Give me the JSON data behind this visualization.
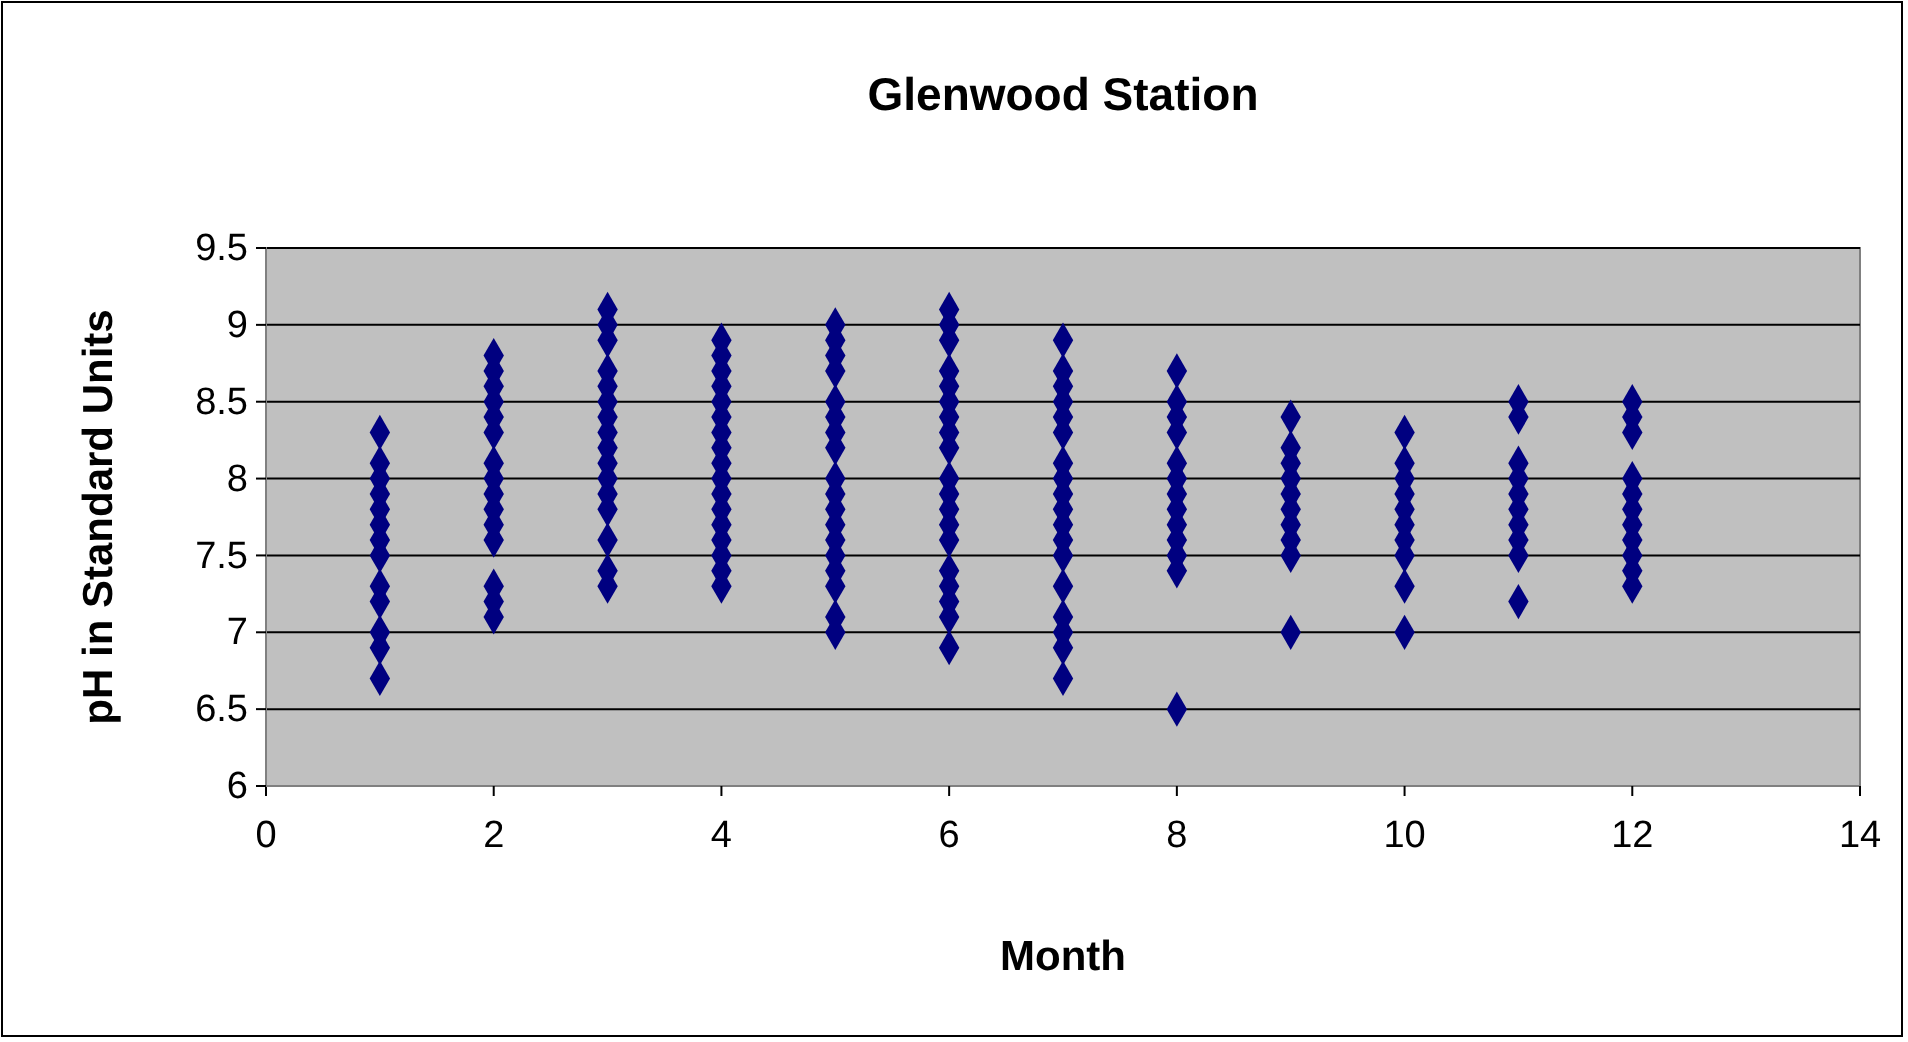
{
  "chart_data": {
    "type": "scatter",
    "title": "Glenwood Station",
    "xlabel": "Month",
    "ylabel": "pH in Standard Units",
    "xlim": [
      0,
      14
    ],
    "xticks": [
      0,
      2,
      4,
      6,
      8,
      10,
      12,
      14
    ],
    "ylim": [
      6,
      9.5
    ],
    "yticks": [
      6,
      6.5,
      7,
      7.5,
      8,
      8.5,
      9,
      9.5
    ],
    "grid": "y",
    "marker": "diamond",
    "series": [
      {
        "color": "#000080",
        "x": [
          1,
          1,
          1,
          1,
          1,
          1,
          1,
          1,
          1,
          1,
          1,
          1,
          1,
          2,
          2,
          2,
          2,
          2,
          2,
          2,
          2,
          2,
          2,
          2,
          2,
          2,
          2,
          2,
          3,
          3,
          3,
          3,
          3,
          3,
          3,
          3,
          3,
          3,
          3,
          3,
          3,
          3,
          3,
          3,
          4,
          4,
          4,
          4,
          4,
          4,
          4,
          4,
          4,
          4,
          4,
          4,
          4,
          4,
          4,
          4,
          4,
          5,
          5,
          5,
          5,
          5,
          5,
          5,
          5,
          5,
          5,
          5,
          5,
          5,
          5,
          5,
          5,
          5,
          5,
          6,
          6,
          6,
          6,
          6,
          6,
          6,
          6,
          6,
          6,
          6,
          6,
          6,
          6,
          6,
          6,
          6,
          6,
          6,
          7,
          7,
          7,
          7,
          7,
          7,
          7,
          7,
          7,
          7,
          7,
          7,
          7,
          7,
          7,
          7,
          7,
          7,
          8,
          8,
          8,
          8,
          8,
          8,
          8,
          8,
          8,
          8,
          8,
          8,
          8,
          9,
          9,
          9,
          9,
          9,
          9,
          9,
          9,
          9,
          9,
          10,
          10,
          10,
          10,
          10,
          10,
          10,
          10,
          10,
          10,
          11,
          11,
          11,
          11,
          11,
          11,
          11,
          11,
          11,
          11,
          12,
          12,
          12,
          12,
          12,
          12,
          12,
          12,
          12,
          12,
          12
        ],
        "values": [
          8.3,
          8.1,
          8.0,
          7.9,
          7.8,
          7.7,
          7.6,
          7.5,
          7.3,
          7.2,
          7.0,
          6.9,
          6.7,
          8.8,
          8.7,
          8.6,
          8.5,
          8.4,
          8.3,
          8.1,
          8.0,
          7.9,
          7.8,
          7.7,
          7.6,
          7.3,
          7.2,
          7.1,
          9.1,
          9.0,
          8.9,
          8.7,
          8.6,
          8.5,
          8.4,
          8.3,
          8.2,
          8.1,
          8.0,
          7.9,
          7.8,
          7.6,
          7.4,
          7.3,
          8.9,
          8.8,
          8.7,
          8.6,
          8.5,
          8.4,
          8.3,
          8.2,
          8.1,
          8.0,
          7.9,
          7.8,
          7.7,
          7.6,
          7.5,
          7.4,
          7.3,
          7.1,
          9.0,
          8.9,
          8.8,
          8.7,
          8.5,
          8.4,
          8.3,
          8.2,
          8.0,
          7.9,
          7.8,
          7.7,
          7.6,
          7.5,
          7.4,
          7.3,
          7.0,
          6.9,
          9.1,
          9.0,
          8.9,
          8.7,
          8.6,
          8.5,
          8.4,
          8.3,
          8.2,
          8.0,
          7.9,
          7.8,
          7.7,
          7.6,
          7.4,
          7.3,
          7.2,
          7.1,
          8.9,
          8.7,
          8.6,
          8.5,
          8.4,
          8.3,
          8.1,
          8.0,
          7.9,
          7.8,
          7.7,
          7.6,
          7.5,
          7.3,
          7.1,
          7.0,
          6.9,
          6.7,
          8.7,
          8.5,
          8.4,
          8.3,
          8.1,
          8.0,
          7.9,
          7.8,
          7.7,
          7.6,
          7.5,
          7.4,
          6.5,
          8.4,
          8.2,
          8.1,
          8.0,
          7.9,
          7.8,
          7.7,
          7.6,
          7.5,
          7.0,
          8.3,
          8.1,
          8.0,
          7.9,
          7.8,
          7.7,
          7.6,
          7.5,
          7.3,
          7.0,
          8.5,
          8.4,
          8.1,
          8.0,
          7.9,
          7.8,
          7.7,
          7.6,
          7.5,
          7.2,
          8.5,
          8.4,
          8.3,
          8.0,
          7.9,
          7.8,
          7.7,
          7.6,
          7.5,
          7.4,
          7.3
        ]
      }
    ]
  }
}
